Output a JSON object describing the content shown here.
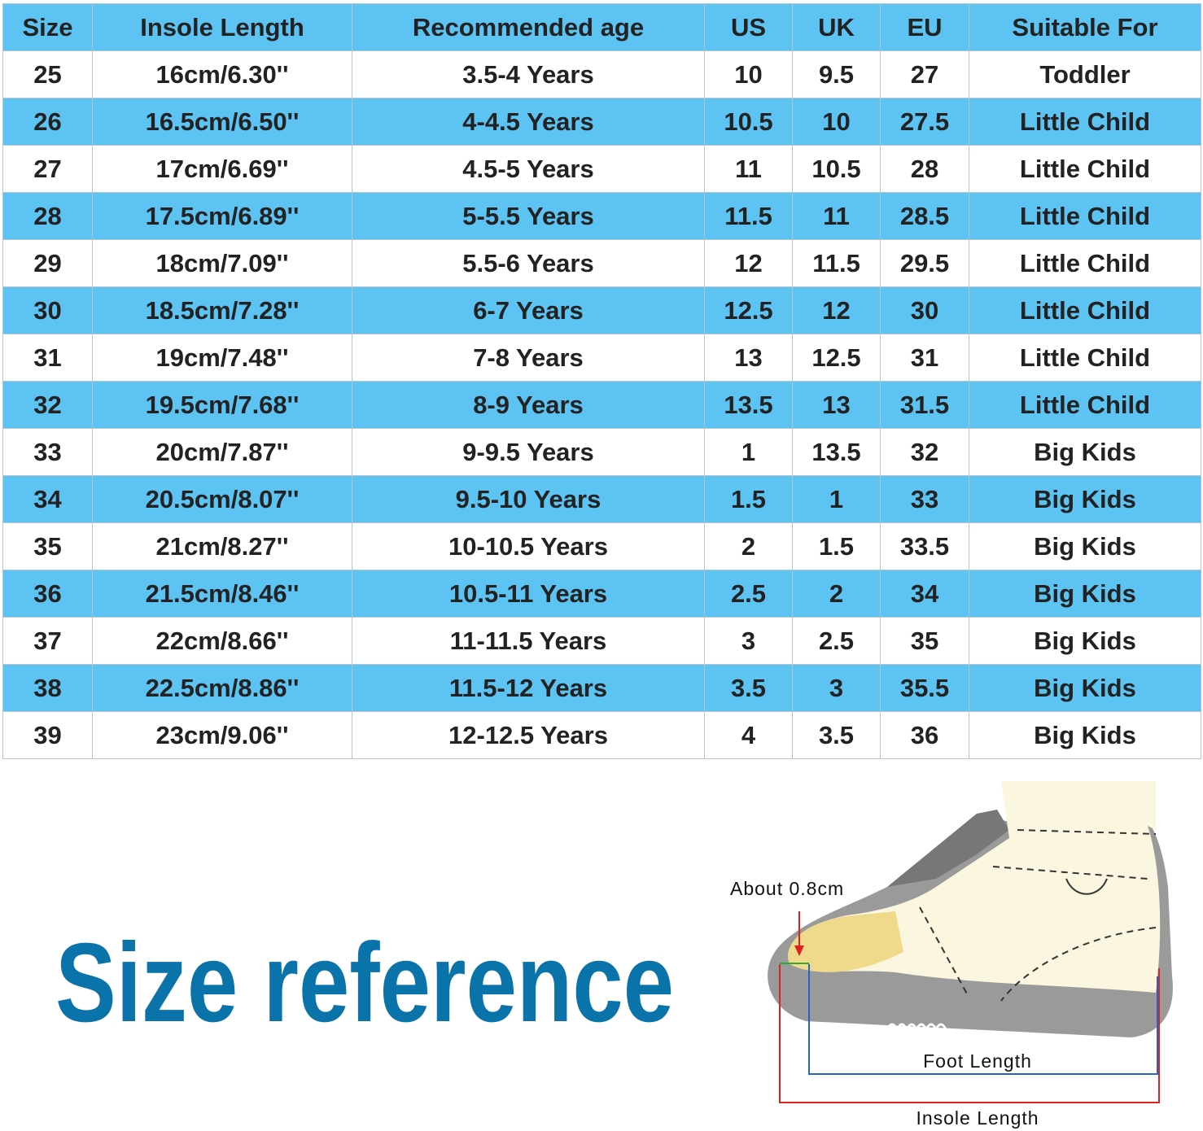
{
  "table": {
    "header": [
      "Size",
      "Insole Length",
      "Recommended age",
      "US",
      "UK",
      "EU",
      "Suitable For"
    ],
    "rows": [
      [
        "25",
        "16cm/6.30''",
        "3.5-4 Years",
        "10",
        "9.5",
        "27",
        "Toddler"
      ],
      [
        "26",
        "16.5cm/6.50''",
        "4-4.5 Years",
        "10.5",
        "10",
        "27.5",
        "Little Child"
      ],
      [
        "27",
        "17cm/6.69''",
        "4.5-5 Years",
        "11",
        "10.5",
        "28",
        "Little Child"
      ],
      [
        "28",
        "17.5cm/6.89''",
        "5-5.5 Years",
        "11.5",
        "11",
        "28.5",
        "Little Child"
      ],
      [
        "29",
        "18cm/7.09''",
        "5.5-6 Years",
        "12",
        "11.5",
        "29.5",
        "Little Child"
      ],
      [
        "30",
        "18.5cm/7.28''",
        "6-7 Years",
        "12.5",
        "12",
        "30",
        "Little Child"
      ],
      [
        "31",
        "19cm/7.48''",
        "7-8 Years",
        "13",
        "12.5",
        "31",
        "Little Child"
      ],
      [
        "32",
        "19.5cm/7.68''",
        "8-9 Years",
        "13.5",
        "13",
        "31.5",
        "Little Child"
      ],
      [
        "33",
        "20cm/7.87''",
        "9-9.5 Years",
        "1",
        "13.5",
        "32",
        "Big Kids"
      ],
      [
        "34",
        "20.5cm/8.07''",
        "9.5-10 Years",
        "1.5",
        "1",
        "33",
        "Big Kids"
      ],
      [
        "35",
        "21cm/8.27''",
        "10-10.5 Years",
        "2",
        "1.5",
        "33.5",
        "Big Kids"
      ],
      [
        "36",
        "21.5cm/8.46''",
        "10.5-11 Years",
        "2.5",
        "2",
        "34",
        "Big Kids"
      ],
      [
        "37",
        "22cm/8.66''",
        "11-11.5 Years",
        "3",
        "2.5",
        "35",
        "Big Kids"
      ],
      [
        "38",
        "22.5cm/8.86''",
        "11.5-12 Years",
        "3.5",
        "3",
        "35.5",
        "Big Kids"
      ],
      [
        "39",
        "23cm/9.06''",
        "12-12.5 Years",
        "4",
        "3.5",
        "36",
        "Big Kids"
      ]
    ]
  },
  "title": "Size reference",
  "illustration": {
    "toe_gap": "About 0.8cm",
    "foot_length": "Foot Length",
    "insole_length": "Insole Length"
  }
}
